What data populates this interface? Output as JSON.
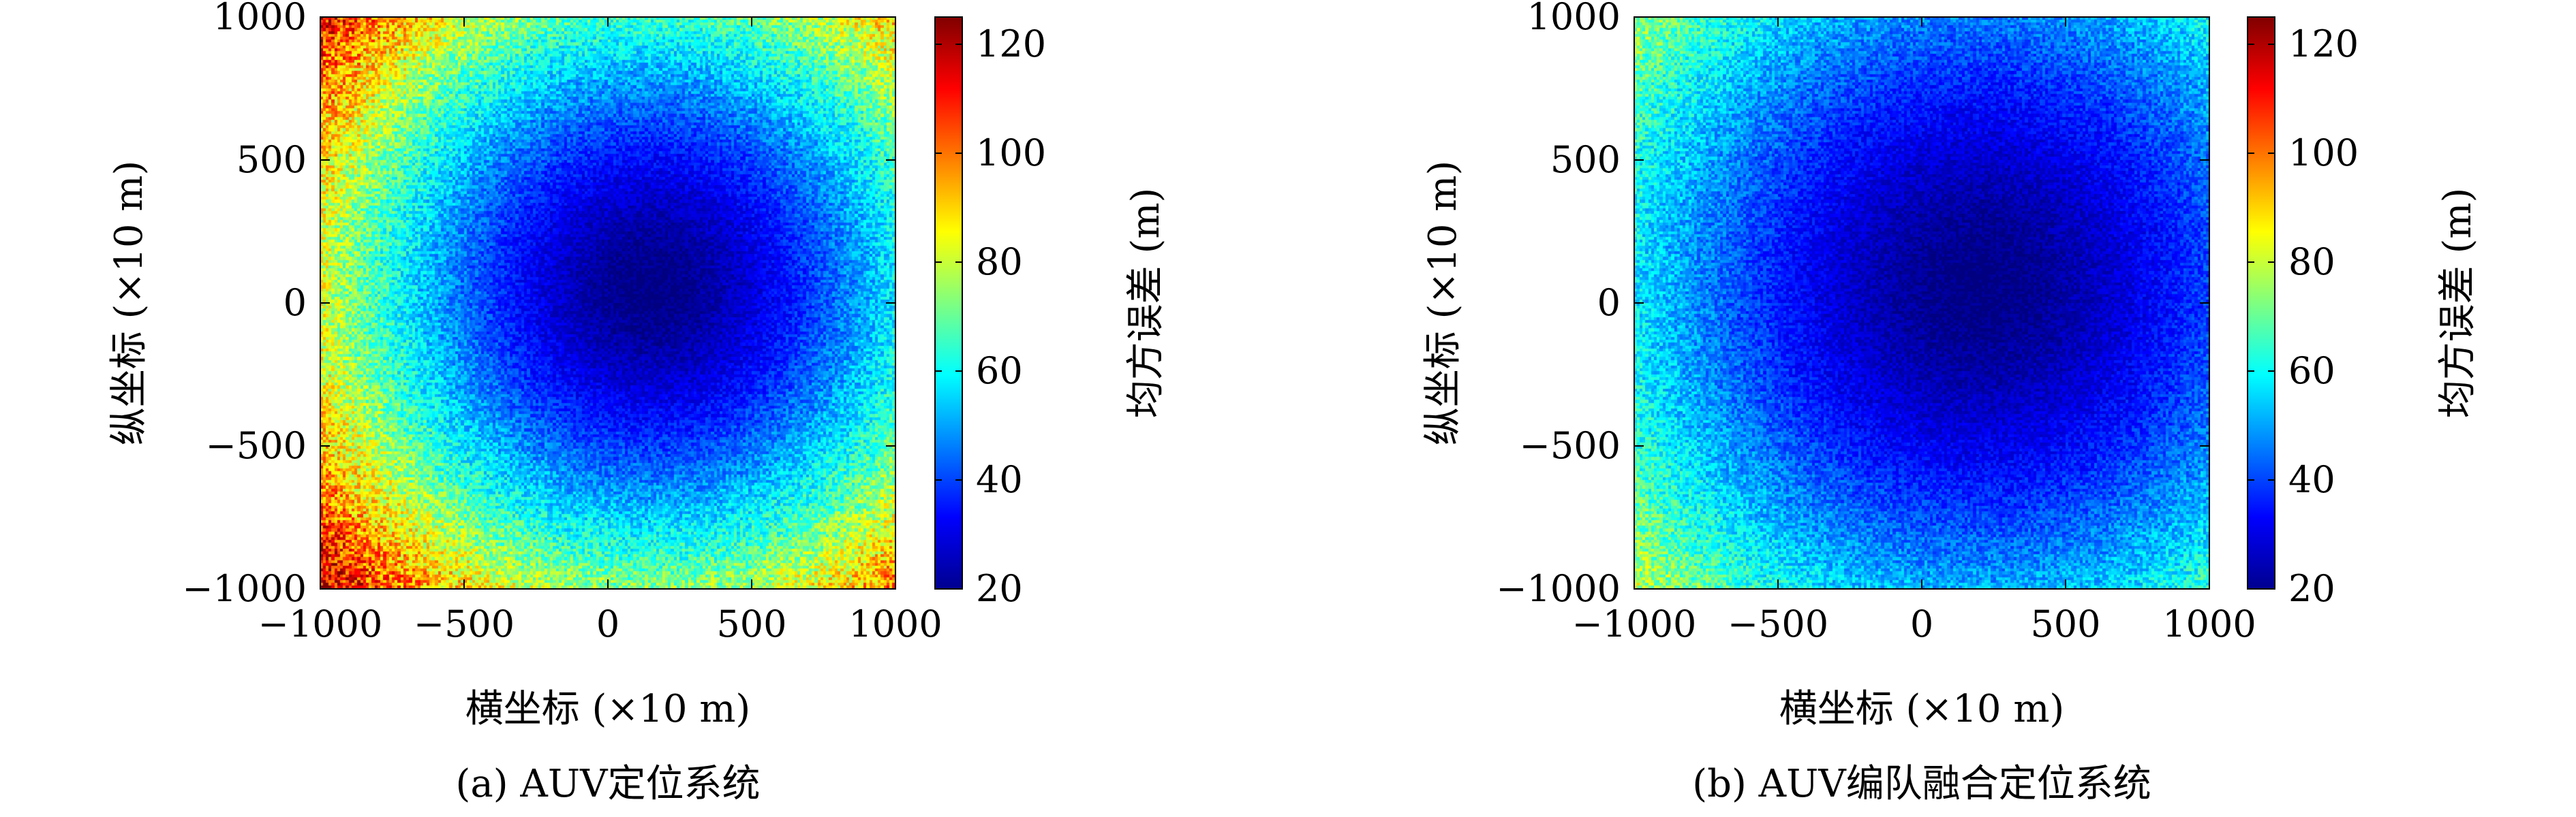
{
  "chart_data": [
    {
      "type": "heatmap",
      "caption": "(a) AUV定位系统",
      "xlabel": "横坐标 (×10 m)",
      "ylabel": "纵坐标 (×10 m)",
      "xlim": [
        -1000,
        1000
      ],
      "ylim": [
        -1000,
        1000
      ],
      "xticks": [
        -1000,
        -500,
        0,
        500,
        1000
      ],
      "yticks": [
        -1000,
        -500,
        0,
        500,
        1000
      ],
      "xtick_labels": [
        "−1000",
        "−500",
        "0",
        "500",
        "1000"
      ],
      "ytick_labels": [
        "−1000",
        "−500",
        "0",
        "500",
        "1000"
      ],
      "colorbar": {
        "label": "均方误差 (m)",
        "range": [
          20,
          125
        ],
        "ticks": [
          20,
          40,
          60,
          80,
          100,
          120
        ],
        "tick_labels": [
          "20",
          "40",
          "60",
          "80",
          "100",
          "120"
        ],
        "colormap": "jet"
      },
      "field": {
        "min_value": 20,
        "min_location": [
          150,
          50
        ],
        "max_value": 120,
        "max_location": [
          -1000,
          -1000
        ],
        "noise": "speckled per-cell random variation"
      }
    },
    {
      "type": "heatmap",
      "caption": "(b) AUV编队融合定位系统",
      "xlabel": "横坐标 (×10 m)",
      "ylabel": "纵坐标 (×10 m)",
      "xlim": [
        -1000,
        1000
      ],
      "ylim": [
        -1000,
        1000
      ],
      "xticks": [
        -1000,
        -500,
        0,
        500,
        1000
      ],
      "yticks": [
        -1000,
        -500,
        0,
        500,
        1000
      ],
      "xtick_labels": [
        "−1000",
        "−500",
        "0",
        "500",
        "1000"
      ],
      "ytick_labels": [
        "−1000",
        "−500",
        "0",
        "500",
        "1000"
      ],
      "colorbar": {
        "label": "均方误差 (m)",
        "range": [
          20,
          125
        ],
        "ticks": [
          20,
          40,
          60,
          80,
          100,
          120
        ],
        "tick_labels": [
          "20",
          "40",
          "60",
          "80",
          "100",
          "120"
        ],
        "colormap": "jet"
      },
      "field": {
        "min_value": 20,
        "min_location": [
          200,
          50
        ],
        "max_value": 80,
        "max_location": [
          -1000,
          -1000
        ],
        "noise": "speckled per-cell random variation"
      }
    }
  ]
}
